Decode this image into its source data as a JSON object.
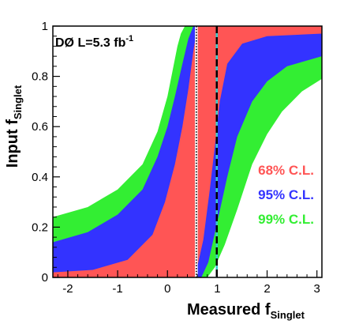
{
  "chart_data": {
    "type": "area",
    "annotation": {
      "main": "DØ L=5.3 fb",
      "sup": "-1"
    },
    "xlabel": {
      "main": "Measured f",
      "sub": "Singlet"
    },
    "ylabel": {
      "main": "Input f",
      "sub": "Singlet"
    },
    "xlim": [
      -2.3,
      3.1
    ],
    "ylim": [
      0,
      1
    ],
    "x_ticks": [
      -2,
      -1,
      0,
      1,
      2,
      3
    ],
    "x_tick_labels": [
      "-2",
      "-1",
      "0",
      "1",
      "2",
      "3"
    ],
    "y_ticks": [
      0,
      0.2,
      0.4,
      0.6,
      0.8,
      1
    ],
    "y_tick_labels": [
      "0",
      "0.2",
      "0.4",
      "0.6",
      "0.8",
      "1"
    ],
    "grid": false,
    "legend": [
      {
        "name": "68% C.L.",
        "color": "#ff5555"
      },
      {
        "name": "95% C.L.",
        "color": "#3333ff"
      },
      {
        "name": "99% C.L.",
        "color": "#33ee33"
      }
    ],
    "bands": [
      {
        "name": "99% C.L.",
        "color": "#33ee33",
        "left_edge": [
          [
            -2.3,
            0.24
          ],
          [
            -1.6,
            0.28
          ],
          [
            -1.0,
            0.35
          ],
          [
            -0.5,
            0.45
          ],
          [
            -0.2,
            0.58
          ],
          [
            0,
            0.72
          ],
          [
            0.1,
            0.82
          ],
          [
            0.2,
            0.92
          ],
          [
            0.27,
            0.97
          ],
          [
            0.35,
            1.0
          ]
        ],
        "right_edge": [
          [
            0.8,
            0.0
          ],
          [
            0.95,
            0.04
          ],
          [
            1.15,
            0.13
          ],
          [
            1.4,
            0.27
          ],
          [
            1.7,
            0.45
          ],
          [
            2.0,
            0.57
          ],
          [
            2.3,
            0.66
          ],
          [
            2.7,
            0.74
          ],
          [
            3.1,
            0.79
          ]
        ]
      },
      {
        "name": "95% C.L.",
        "color": "#3333ff",
        "left_edge": [
          [
            -2.3,
            0.14
          ],
          [
            -1.6,
            0.18
          ],
          [
            -1.0,
            0.25
          ],
          [
            -0.5,
            0.35
          ],
          [
            -0.2,
            0.48
          ],
          [
            0,
            0.6
          ],
          [
            0.15,
            0.72
          ],
          [
            0.3,
            0.85
          ],
          [
            0.42,
            0.95
          ],
          [
            0.52,
            1.0
          ]
        ],
        "right_edge": [
          [
            0.68,
            0.0
          ],
          [
            0.82,
            0.06
          ],
          [
            1.0,
            0.22
          ],
          [
            1.2,
            0.4
          ],
          [
            1.4,
            0.56
          ],
          [
            1.7,
            0.7
          ],
          [
            2.0,
            0.78
          ],
          [
            2.4,
            0.84
          ],
          [
            3.1,
            0.88
          ]
        ]
      },
      {
        "name": "68% C.L.",
        "color": "#ff5555",
        "left_edge": [
          [
            -2.3,
            0.02
          ],
          [
            -1.5,
            0.03
          ],
          [
            -0.8,
            0.07
          ],
          [
            -0.3,
            0.17
          ],
          [
            -0.05,
            0.3
          ],
          [
            0.15,
            0.45
          ],
          [
            0.3,
            0.6
          ],
          [
            0.42,
            0.75
          ],
          [
            0.52,
            0.9
          ],
          [
            0.6,
            1.0
          ]
        ],
        "right_edge": [
          [
            0.55,
            0.0
          ],
          [
            0.72,
            0.15
          ],
          [
            0.85,
            0.35
          ],
          [
            0.95,
            0.52
          ],
          [
            1.05,
            0.7
          ],
          [
            1.2,
            0.85
          ],
          [
            1.5,
            0.93
          ],
          [
            2.0,
            0.96
          ],
          [
            3.1,
            0.97
          ]
        ]
      }
    ],
    "vertical_lines": [
      {
        "x": 0.58,
        "style": "dotted",
        "color": "#000000"
      },
      {
        "x": 0.99,
        "style": "dashed",
        "color": "#000000",
        "alt_color": "#33cccc"
      }
    ]
  }
}
